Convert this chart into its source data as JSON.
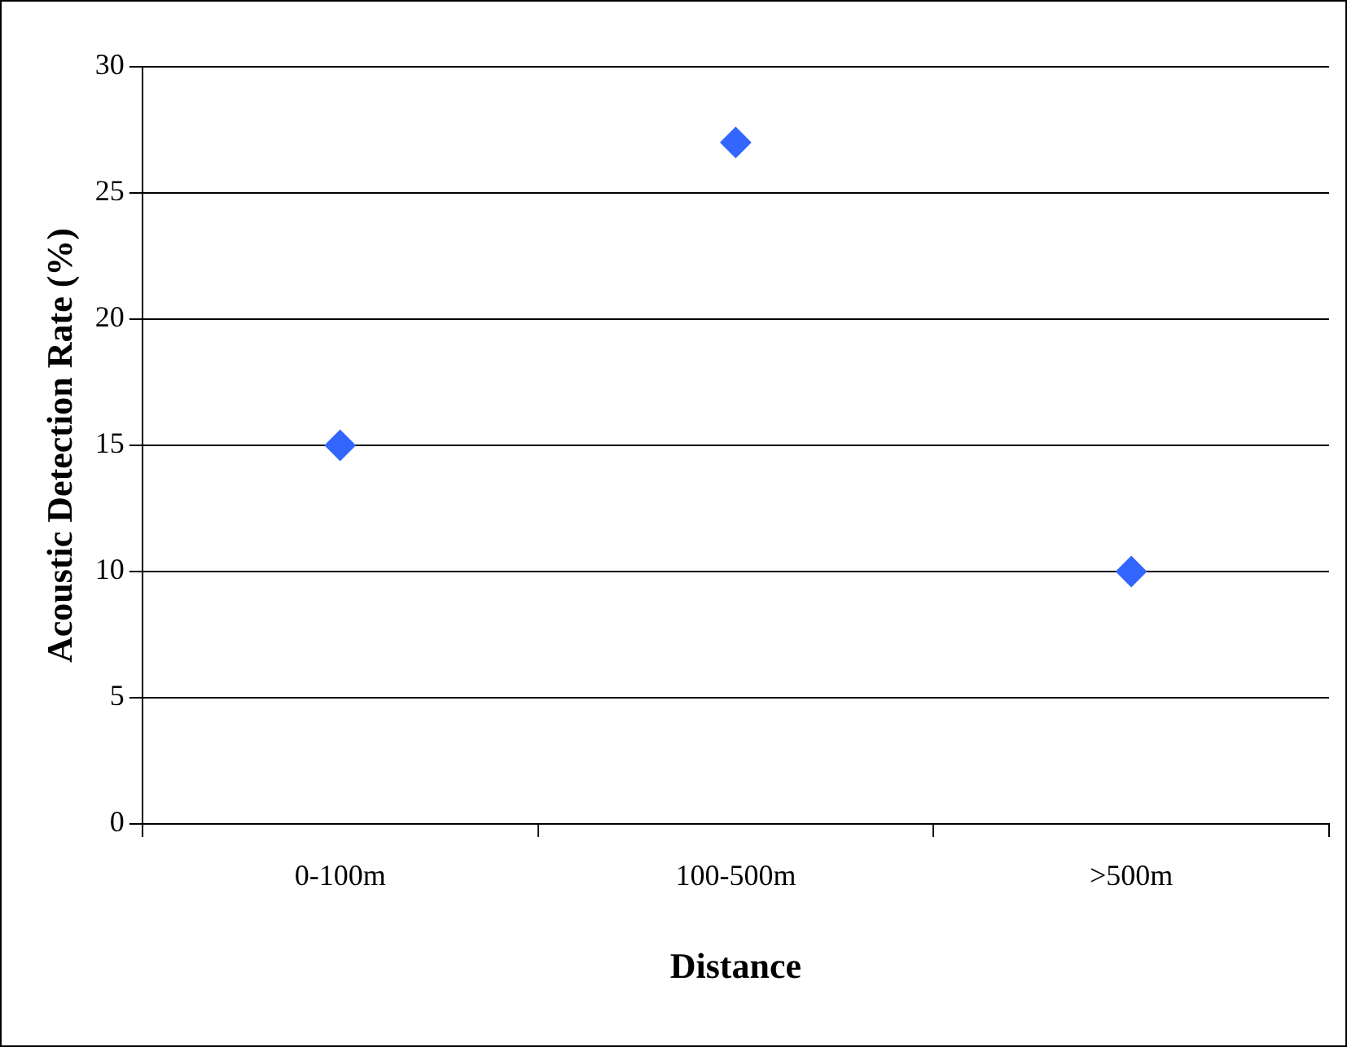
{
  "chart_data": {
    "type": "scatter",
    "xlabel": "Distance",
    "ylabel": "Acoustic Detection Rate (%)",
    "categories": [
      "0-100m",
      "100-500m",
      ">500m"
    ],
    "series": [
      {
        "color": "#3366ff",
        "values": [
          15,
          27,
          10
        ]
      }
    ],
    "ylim": [
      0,
      30
    ],
    "yticks": [
      0,
      5,
      10,
      15,
      20,
      25,
      30
    ],
    "grid": "y",
    "legend": false,
    "marker": "diamond"
  }
}
